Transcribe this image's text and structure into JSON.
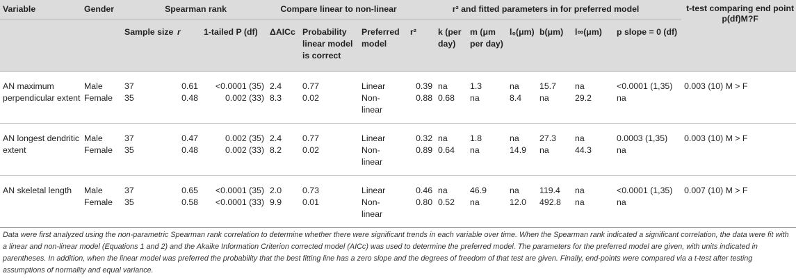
{
  "group_headers": {
    "variable": "Variable",
    "gender": "Gender",
    "spearman": "Spearman rank",
    "compare": "Compare linear to non-linear",
    "fitted": "r² and fitted parameters in for preferred model",
    "ttest": "t-test comparing end point p(df)M?F"
  },
  "sub_headers": {
    "sample_size": "Sample size",
    "r": "r",
    "p_1tailed": "1-tailed P (df)",
    "delta_aicc": "ΔAICc",
    "prob_linear": "Probability linear model is correct",
    "preferred": "Preferred model",
    "r2": "r²",
    "k": "k (per day)",
    "m": "m (μm per day)",
    "l0": "l₀(μm)",
    "b": "b(μm)",
    "linf": "l∞(μm)",
    "p_slope": "p slope = 0 (df)"
  },
  "rows": [
    {
      "variable": "AN maximum perpendicular extent",
      "entries": [
        {
          "gender": "Male",
          "n": "37",
          "r": "0.61",
          "p": "<0.0001 (35)",
          "daicc": "2.4",
          "prob": "0.77",
          "pref": "Linear",
          "r2": "0.39",
          "k": "na",
          "m": "1.3",
          "l0": "na",
          "b": "15.7",
          "linf": "na",
          "pslope": "<0.0001 (1,35)",
          "ttest": "0.003 (10) M > F"
        },
        {
          "gender": "Female",
          "n": "35",
          "r": "0.48",
          "p": "0.002 (33)",
          "daicc": "8.3",
          "prob": "0.02",
          "pref": "Non-linear",
          "r2": "0.88",
          "k": "0.68",
          "m": "na",
          "l0": "8.4",
          "b": "na",
          "linf": "29.2",
          "pslope": "na",
          "ttest": ""
        }
      ]
    },
    {
      "variable": "AN longest dendritic extent",
      "entries": [
        {
          "gender": "Male",
          "n": "37",
          "r": "0.47",
          "p": "0.002 (35)",
          "daicc": "2.4",
          "prob": "0.77",
          "pref": "Linear",
          "r2": "0.32",
          "k": "na",
          "m": "1.8",
          "l0": "na",
          "b": "27.3",
          "linf": "na",
          "pslope": "0.0003 (1,35)",
          "ttest": "0.003 (10) M > F"
        },
        {
          "gender": "Female",
          "n": "35",
          "r": "0.48",
          "p": "0.002 (33)",
          "daicc": "8.2",
          "prob": "0.02",
          "pref": "Non-linear",
          "r2": "0.89",
          "k": "0.64",
          "m": "na",
          "l0": "14.9",
          "b": "na",
          "linf": "44.3",
          "pslope": "na",
          "ttest": ""
        }
      ]
    },
    {
      "variable": "AN skeletal length",
      "entries": [
        {
          "gender": "Male",
          "n": "37",
          "r": "0.65",
          "p": "<0.0001 (35)",
          "daicc": "2.0",
          "prob": "0.73",
          "pref": "Linear",
          "r2": "0.46",
          "k": "na",
          "m": "46.9",
          "l0": "na",
          "b": "119.4",
          "linf": "na",
          "pslope": "<0.0001 (1,35)",
          "ttest": "0.007 (10) M > F"
        },
        {
          "gender": "Female",
          "n": "35",
          "r": "0.58",
          "p": "<0.0001 (33)",
          "daicc": "9.9",
          "prob": "0.01",
          "pref": "Non-linear",
          "r2": "0.80",
          "k": "0.52",
          "m": "na",
          "l0": "12.0",
          "b": "492.8",
          "linf": "na",
          "pslope": "na",
          "ttest": ""
        }
      ]
    }
  ],
  "footnote": "Data were first analyzed using the non-parametric Spearman rank correlation to determine whether there were significant trends in each variable over time. When the Spearman rank indicated a significant correlation, the data were fit with a linear and non-linear model (Equations 1 and 2) and the Akaike Information Criterion corrected model (AICc) was used to determine the preferred model. The parameters for the preferred model are given, with units indicated in parentheses. In addition, when the linear model was preferred the probability that the best fitting line has a zero slope and the degrees of freedom of that test are given. Finally, end-points were compared via a t-test after testing assumptions of normality and equal variance."
}
